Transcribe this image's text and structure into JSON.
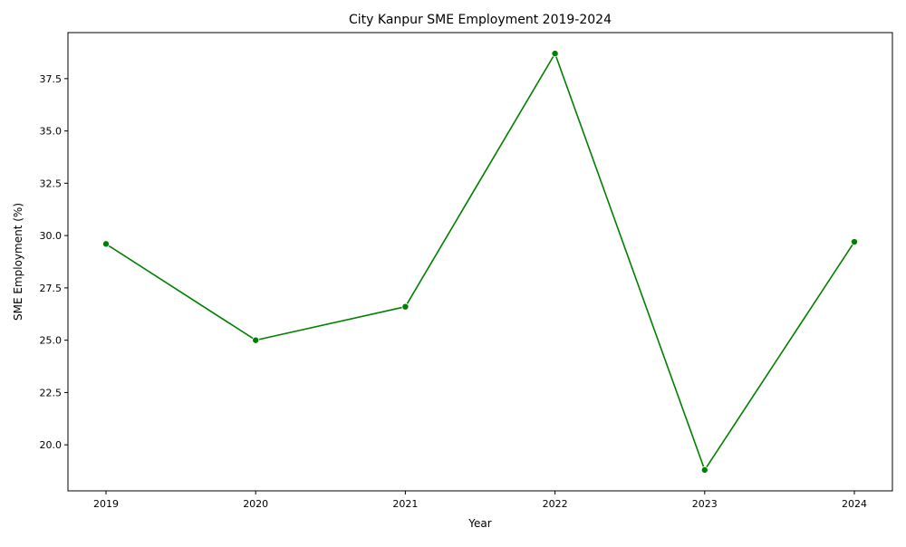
{
  "chart_data": {
    "type": "line",
    "title": "City Kanpur SME Employment 2019-2024",
    "xlabel": "Year",
    "ylabel": "SME Employment (%)",
    "categories": [
      "2019",
      "2020",
      "2021",
      "2022",
      "2023",
      "2024"
    ],
    "series": [
      {
        "values": [
          29.6,
          25.0,
          26.6,
          38.7,
          18.8,
          29.7
        ]
      }
    ],
    "y_ticks": [
      "20.0",
      "22.5",
      "25.0",
      "27.5",
      "30.0",
      "32.5",
      "35.0",
      "37.5"
    ],
    "ylim": [
      17.8,
      39.7
    ],
    "grid": false,
    "legend": "none",
    "colors": {
      "line": "#008000",
      "marker": "#008000",
      "axis": "#000000"
    }
  }
}
